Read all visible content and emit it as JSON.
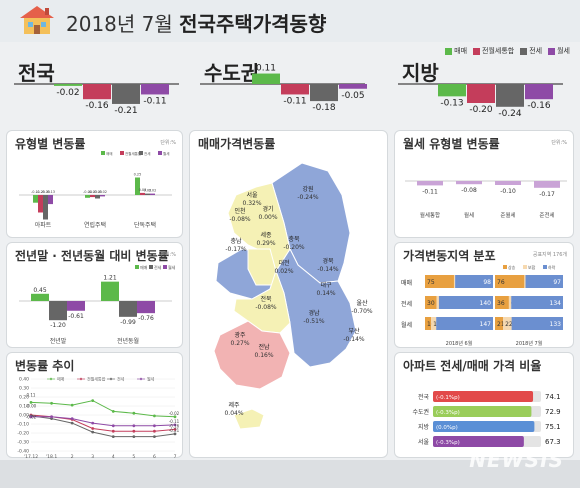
{
  "header": {
    "title_prefix": "2018년 7월 ",
    "title_main": "전국주택가격동향"
  },
  "legend": {
    "items": [
      {
        "label": "매매",
        "color": "#5cb94a"
      },
      {
        "label": "전월세통합",
        "color": "#c43d5b"
      },
      {
        "label": "전세",
        "color": "#666666"
      },
      {
        "label": "월세",
        "color": "#8e4aa6"
      }
    ]
  },
  "summary": [
    {
      "label": "전국",
      "values": [
        -0.02,
        -0.16,
        -0.21,
        -0.11
      ],
      "texts": [
        "-0.02",
        "-0.16",
        "-0.21",
        "-0.11"
      ]
    },
    {
      "label": "수도권",
      "values": [
        0.11,
        -0.11,
        -0.18,
        -0.05
      ],
      "texts": [
        "0.11",
        "-0.11",
        "-0.18",
        "-0.05"
      ]
    },
    {
      "label": "지방",
      "values": [
        -0.13,
        -0.2,
        -0.24,
        -0.16
      ],
      "texts": [
        "-0.13",
        "-0.20",
        "-0.24",
        "-0.16"
      ]
    }
  ],
  "panels": {
    "type_change": {
      "title": "유형별 변동률",
      "unit": "단위:%"
    },
    "yoy_change": {
      "title": "전년말 · 전년동월 대비 변동률",
      "unit": "단위:%"
    },
    "trend": {
      "title": "변동률 추이"
    },
    "map": {
      "title": "매매가격변동률"
    },
    "monthly_rent": {
      "title": "월세 유형별 변동률",
      "unit": "단위:%"
    },
    "distribution": {
      "title": "가격변동지역 분포",
      "unit": "공표지역 176개"
    },
    "ratio": {
      "title": "아파트 전세/매매 가격 비율"
    }
  },
  "chart_data": [
    {
      "type": "bar",
      "title": "유형별 변동률",
      "categories": [
        "아파트",
        "연립주택",
        "단독주택"
      ],
      "series": [
        {
          "name": "매매",
          "values": [
            -0.11,
            -0.04,
            0.25
          ]
        },
        {
          "name": "전월세통합",
          "values": [
            -0.25,
            -0.03,
            0.03
          ]
        },
        {
          "name": "전세",
          "values": [
            -0.35,
            -0.05,
            0.02
          ]
        },
        {
          "name": "월세",
          "values": [
            -0.13,
            -0.02,
            0.02
          ]
        }
      ],
      "value_texts": [
        [
          "-0.11",
          "-0.25",
          "-0.35",
          "-0.13"
        ],
        [
          "-0.04",
          "-0.03",
          "-0.05",
          "-0.02"
        ],
        [
          "0.25",
          "0.03",
          "0.02",
          "0.02"
        ]
      ]
    },
    {
      "type": "bar",
      "title": "전년말 · 전년동월 대비 변동률",
      "categories": [
        "전년말",
        "전년동월"
      ],
      "series": [
        {
          "name": "매매",
          "values": [
            0.45,
            1.21
          ]
        },
        {
          "name": "전세",
          "values": [
            -1.2,
            -0.99
          ]
        },
        {
          "name": "월세",
          "values": [
            -0.61,
            -0.76
          ]
        }
      ],
      "value_texts": [
        [
          "0.45",
          "-1.20",
          "-0.61"
        ],
        [
          "1.21",
          "-0.99",
          "-0.76"
        ]
      ]
    },
    {
      "type": "line",
      "title": "변동률 추이",
      "categories": [
        "'17.12",
        "'18.1",
        "2",
        "3",
        "4",
        "5",
        "6",
        "7"
      ],
      "series": [
        {
          "name": "매매",
          "values": [
            0.14,
            0.13,
            0.11,
            0.16,
            0.04,
            0.02,
            -0.01,
            -0.02
          ]
        },
        {
          "name": "전월세통합",
          "values": [
            0.0,
            -0.02,
            -0.05,
            -0.15,
            -0.18,
            -0.18,
            -0.18,
            -0.16
          ]
        },
        {
          "name": "전세",
          "values": [
            -0.01,
            -0.04,
            -0.09,
            -0.19,
            -0.24,
            -0.24,
            -0.24,
            -0.21
          ]
        },
        {
          "name": "월세",
          "values": [
            -0.02,
            -0.02,
            -0.04,
            -0.09,
            -0.12,
            -0.12,
            -0.12,
            -0.11
          ]
        }
      ],
      "point_labels": {
        "start": [
          "0.11",
          "-0.00",
          "-0.02"
        ],
        "end": [
          "-0.02",
          "-0.11",
          "-0.16",
          "-0.21"
        ]
      },
      "ylim": [
        -0.4,
        0.4
      ],
      "yticks": [
        "0.40",
        "0.30",
        "0.20",
        "0.10",
        "0.00",
        "-0.10",
        "-0.20",
        "-0.30",
        "-0.40"
      ]
    },
    {
      "type": "bar",
      "title": "월세 유형별 변동률",
      "categories": [
        "월세통합",
        "월세",
        "준월세",
        "준전세"
      ],
      "values": [
        -0.11,
        -0.08,
        -0.1,
        -0.17
      ],
      "value_texts": [
        "-0.11",
        "-0.08",
        "-0.10",
        "-0.17"
      ]
    },
    {
      "type": "bar",
      "title": "가격변동지역 분포",
      "rows": [
        "매매",
        "전세",
        "월세"
      ],
      "legend": [
        "상승",
        "보합",
        "하락"
      ],
      "colors": [
        "#e8a040",
        "#f6d9b0",
        "#6b8fd0"
      ],
      "groups": [
        {
          "name": "2018년 6월",
          "values": [
            [
              75,
              3,
              98
            ],
            [
              30,
              6,
              140
            ],
            [
              16,
              13,
              147
            ]
          ],
          "texts": [
            [
              "75",
              "3",
              "98"
            ],
            [
              "30",
              "6",
              "140"
            ],
            [
              "16",
              "13",
              "147"
            ]
          ]
        },
        {
          "name": "2018년 7월",
          "values": [
            [
              76,
              3,
              97
            ],
            [
              36,
              6,
              134
            ],
            [
              21,
              22,
              133
            ]
          ],
          "texts": [
            [
              "76",
              "3",
              "97"
            ],
            [
              "36",
              "6",
              "134"
            ],
            [
              "21",
              "22",
              "133"
            ]
          ]
        }
      ]
    },
    {
      "type": "bar",
      "title": "아파트 전세/매매 가격 비율",
      "categories": [
        "전국",
        "수도권",
        "지방",
        "서울"
      ],
      "values": [
        74.1,
        72.9,
        75.1,
        67.3
      ],
      "value_texts": [
        "74.1",
        "72.9",
        "75.1",
        "67.3"
      ],
      "change_labels": [
        "(-0.1%p)",
        "(-0.3%p)",
        "(0.0%p)",
        "(-0.3%p)"
      ],
      "colors": [
        "#e24a4a",
        "#9acd5a",
        "#5a8fd6",
        "#8e4aa6"
      ],
      "xlim": [
        0,
        80
      ]
    }
  ],
  "map": {
    "regions": [
      {
        "name": "서울",
        "value": "0.32%"
      },
      {
        "name": "인천",
        "value": "-0.08%"
      },
      {
        "name": "경기",
        "value": "0.00%"
      },
      {
        "name": "강원",
        "value": "-0.24%"
      },
      {
        "name": "세종",
        "value": "0.29%"
      },
      {
        "name": "충북",
        "value": "-0.20%"
      },
      {
        "name": "충남",
        "value": "-0.17%"
      },
      {
        "name": "대전",
        "value": "0.02%"
      },
      {
        "name": "경북",
        "value": "-0.14%"
      },
      {
        "name": "대구",
        "value": "0.14%"
      },
      {
        "name": "전북",
        "value": "-0.08%"
      },
      {
        "name": "울산",
        "value": "-0.70%"
      },
      {
        "name": "경남",
        "value": "-0.51%"
      },
      {
        "name": "부산",
        "value": "-0.14%"
      },
      {
        "name": "광주",
        "value": "0.27%"
      },
      {
        "name": "전남",
        "value": "0.16%"
      },
      {
        "name": "제주",
        "value": "0.04%"
      }
    ]
  },
  "watermark": "NEWSIS"
}
